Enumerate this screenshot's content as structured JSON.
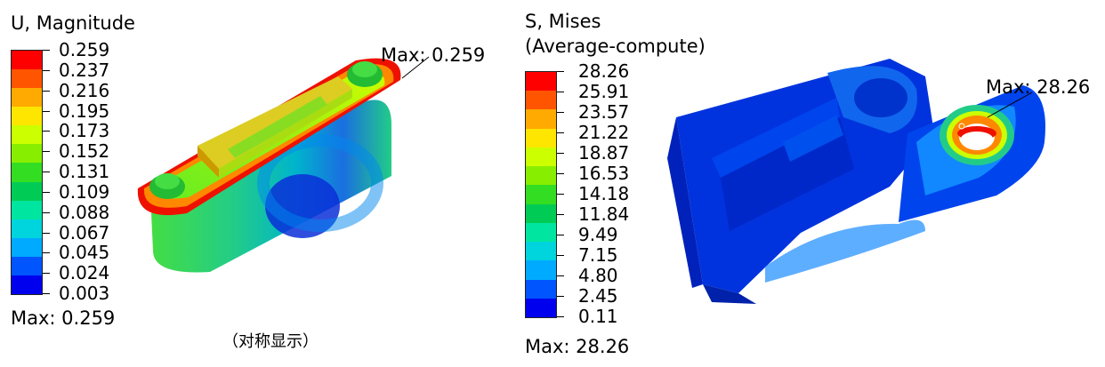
{
  "left": {
    "legend_title": "U, Magnitude",
    "ticks": [
      "0.259",
      "0.237",
      "0.216",
      "0.195",
      "0.173",
      "0.152",
      "0.131",
      "0.109",
      "0.088",
      "0.067",
      "0.045",
      "0.024",
      "0.003"
    ],
    "colors": [
      "#ff0000",
      "#ff5500",
      "#ffaa00",
      "#ffe600",
      "#ccff00",
      "#88ee00",
      "#33dd22",
      "#00cc55",
      "#00e6a0",
      "#00d4dd",
      "#00aaff",
      "#0055ff",
      "#0000ee"
    ],
    "max_label": "Max: 0.259",
    "annotation": "Max: 0.259",
    "caption": "（对称显示）"
  },
  "right": {
    "legend_title_line1": "S, Mises",
    "legend_title_line2": "(Average-compute)",
    "ticks": [
      "28.26",
      "25.91",
      "23.57",
      "21.22",
      "18.87",
      "16.53",
      "14.18",
      "11.84",
      "9.49",
      "7.15",
      "4.80",
      "2.45",
      "0.11"
    ],
    "colors": [
      "#ff0000",
      "#ff5500",
      "#ffaa00",
      "#ffe600",
      "#ccff00",
      "#88ee00",
      "#33dd22",
      "#00cc55",
      "#00e6a0",
      "#00d4dd",
      "#00aaff",
      "#0055ff",
      "#0000ee"
    ],
    "max_label": "Max: 28.26",
    "annotation": "Max: 28.26"
  }
}
